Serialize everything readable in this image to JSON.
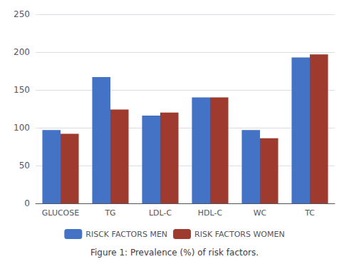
{
  "chart_data": {
    "type": "bar",
    "title": "Figure 1: Prevalence (%) of risk factors.",
    "categories": [
      "GLUCOSE",
      "TG",
      "LDL-C",
      "HDL-C",
      "WC",
      "TC"
    ],
    "series": [
      {
        "name": "RISCK FACTORS MEN",
        "color": "#4472C4",
        "values": [
          97,
          167,
          116,
          140,
          97,
          193
        ]
      },
      {
        "name": "RISK FACTORS WOMEN",
        "color": "#9E3B2E",
        "values": [
          92,
          124,
          120,
          140,
          86,
          197
        ]
      }
    ],
    "ylim": [
      0,
      250
    ],
    "yticks": [
      0,
      50,
      100,
      150,
      200,
      250
    ],
    "grid": true,
    "legend": "bottom"
  }
}
